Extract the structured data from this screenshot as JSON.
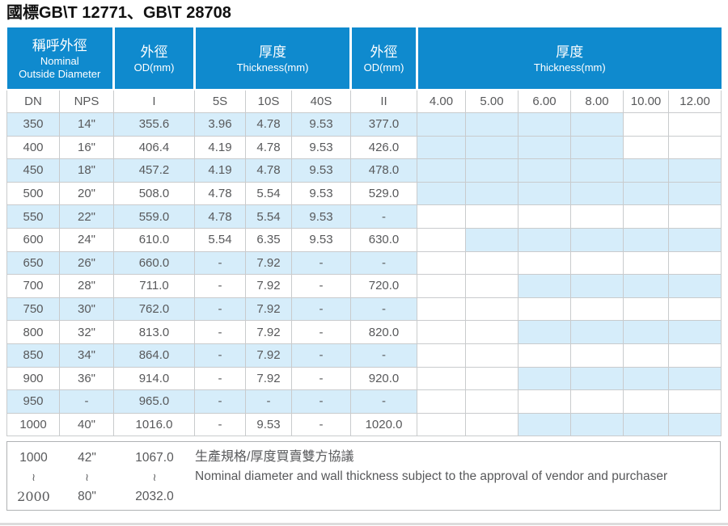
{
  "title": "國標GB\\T 12771、GB\\T 28708",
  "colors": {
    "header_blue": "#0f8ace",
    "stripe_blue": "#d6edfa",
    "text_gray": "#58595b",
    "grid_gray": "#c9cbcd"
  },
  "table": {
    "header_groups": [
      {
        "zh": "稱呼外徑",
        "en": "Nominal",
        "en2": "Outside Diameter"
      },
      {
        "zh": "外徑",
        "en": "OD(mm)"
      },
      {
        "zh": "厚度",
        "en": "Thickness(mm)"
      },
      {
        "zh": "外徑",
        "en": "OD(mm)"
      },
      {
        "zh": "厚度",
        "en": "Thickness(mm)"
      }
    ],
    "columns": [
      "DN",
      "NPS",
      "I",
      "5S",
      "10S",
      "40S",
      "II",
      "4.00",
      "5.00",
      "6.00",
      "8.00",
      "10.00",
      "12.00"
    ],
    "rows": [
      {
        "stripe": true,
        "cells": [
          "350",
          "14\"",
          "355.6",
          "3.96",
          "4.78",
          "9.53",
          "377.0"
        ],
        "shaded": [
          1,
          1,
          1,
          1,
          0,
          0
        ]
      },
      {
        "stripe": false,
        "cells": [
          "400",
          "16\"",
          "406.4",
          "4.19",
          "4.78",
          "9.53",
          "426.0"
        ],
        "shaded": [
          1,
          1,
          1,
          1,
          0,
          0
        ]
      },
      {
        "stripe": true,
        "cells": [
          "450",
          "18\"",
          "457.2",
          "4.19",
          "4.78",
          "9.53",
          "478.0"
        ],
        "shaded": [
          1,
          1,
          1,
          1,
          1,
          1
        ]
      },
      {
        "stripe": false,
        "cells": [
          "500",
          "20\"",
          "508.0",
          "4.78",
          "5.54",
          "9.53",
          "529.0"
        ],
        "shaded": [
          1,
          1,
          1,
          1,
          1,
          1
        ]
      },
      {
        "stripe": true,
        "cells": [
          "550",
          "22\"",
          "559.0",
          "4.78",
          "5.54",
          "9.53",
          "-"
        ],
        "shaded": [
          0,
          0,
          0,
          0,
          0,
          0
        ]
      },
      {
        "stripe": false,
        "cells": [
          "600",
          "24\"",
          "610.0",
          "5.54",
          "6.35",
          "9.53",
          "630.0"
        ],
        "shaded": [
          0,
          1,
          1,
          1,
          1,
          1
        ]
      },
      {
        "stripe": true,
        "cells": [
          "650",
          "26\"",
          "660.0",
          "-",
          "7.92",
          "-",
          "-"
        ],
        "shaded": [
          0,
          0,
          0,
          0,
          0,
          0
        ]
      },
      {
        "stripe": false,
        "cells": [
          "700",
          "28\"",
          "711.0",
          "-",
          "7.92",
          "-",
          "720.0"
        ],
        "shaded": [
          0,
          0,
          1,
          1,
          1,
          1
        ]
      },
      {
        "stripe": true,
        "cells": [
          "750",
          "30\"",
          "762.0",
          "-",
          "7.92",
          "-",
          "-"
        ],
        "shaded": [
          0,
          0,
          0,
          0,
          0,
          0
        ]
      },
      {
        "stripe": false,
        "cells": [
          "800",
          "32\"",
          "813.0",
          "-",
          "7.92",
          "-",
          "820.0"
        ],
        "shaded": [
          0,
          0,
          1,
          1,
          1,
          1
        ]
      },
      {
        "stripe": true,
        "cells": [
          "850",
          "34\"",
          "864.0",
          "-",
          "7.92",
          "-",
          "-"
        ],
        "shaded": [
          0,
          0,
          0,
          0,
          0,
          0
        ]
      },
      {
        "stripe": false,
        "cells": [
          "900",
          "36\"",
          "914.0",
          "-",
          "7.92",
          "-",
          "920.0"
        ],
        "shaded": [
          0,
          0,
          1,
          1,
          1,
          1
        ]
      },
      {
        "stripe": true,
        "cells": [
          "950",
          "-",
          "965.0",
          "-",
          "-",
          "-",
          "-"
        ],
        "shaded": [
          0,
          0,
          0,
          0,
          0,
          0
        ]
      },
      {
        "stripe": false,
        "cells": [
          "1000",
          "40\"",
          "1016.0",
          "-",
          "9.53",
          "-",
          "1020.0"
        ],
        "shaded": [
          0,
          0,
          1,
          1,
          1,
          1
        ]
      }
    ]
  },
  "footer": {
    "dn": [
      "1000",
      "≀",
      "2000"
    ],
    "nps": [
      "42\"",
      "≀",
      "80\""
    ],
    "od": [
      "1067.0",
      "≀",
      "2032.0"
    ],
    "note_zh": "生產規格/厚度買賣雙方協議",
    "note_en": "Nominal diameter and wall thickness subject to the approval of vendor and purchaser"
  }
}
